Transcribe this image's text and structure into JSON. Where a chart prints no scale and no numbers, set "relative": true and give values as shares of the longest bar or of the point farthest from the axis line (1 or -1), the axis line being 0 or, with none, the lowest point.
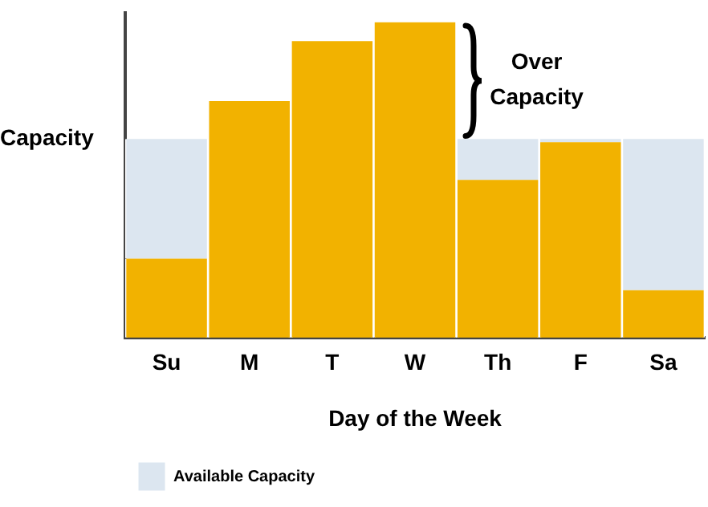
{
  "chart_data": {
    "type": "bar",
    "xlabel": "Day of the Week",
    "categories": [
      "Su",
      "M",
      "T",
      "W",
      "Th",
      "F",
      "Sa"
    ],
    "relative": true,
    "stacked": true,
    "series": [
      {
        "color": "#f2b200",
        "values": [
          0.25,
          0.75,
          0.94,
          1,
          0.5,
          0.62,
          0.15
        ]
      },
      {
        "name": "Available Capacity",
        "color": "#dce6f0",
        "values": [
          0.38,
          0,
          0,
          0,
          0.13,
          0.01,
          0.48
        ]
      }
    ],
    "annotations": [
      "Capacity",
      "Over Capacity"
    ],
    "legend": "bottom left",
    "grid": false
  }
}
